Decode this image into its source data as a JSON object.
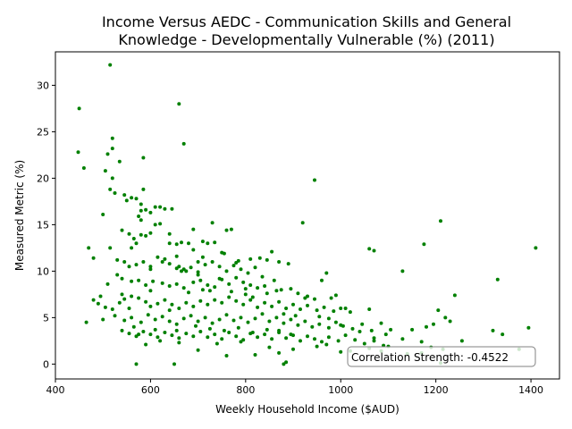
{
  "chart_data": {
    "type": "scatter",
    "title_lines": [
      "Income Versus AEDC - Communication Skills and General",
      "Knowledge - Developmentally Vulnerable (%) (2011)"
    ],
    "xlabel": "Weekly Household Income ($AUD)",
    "ylabel": "Measured Metric (%)",
    "xlim": [
      400,
      1460
    ],
    "ylim": [
      -1.6,
      33.6
    ],
    "xticks": [
      400,
      600,
      800,
      1000,
      1200,
      1400
    ],
    "yticks": [
      0,
      5,
      10,
      15,
      20,
      25,
      30
    ],
    "grid": false,
    "point_color": "#008000",
    "annotation": "Correlation Strength: -0.4522",
    "points": [
      [
        450,
        27.5
      ],
      [
        448,
        22.8
      ],
      [
        460,
        21.1
      ],
      [
        515,
        32.2
      ],
      [
        520,
        24.3
      ],
      [
        520,
        23.2
      ],
      [
        510,
        22.6
      ],
      [
        535,
        21.8
      ],
      [
        505,
        20.8
      ],
      [
        520,
        20.0
      ],
      [
        515,
        18.8
      ],
      [
        525,
        18.4
      ],
      [
        545,
        18.2
      ],
      [
        550,
        17.6
      ],
      [
        560,
        17.9
      ],
      [
        570,
        17.8
      ],
      [
        585,
        18.8
      ],
      [
        580,
        17.2
      ],
      [
        580,
        16.5
      ],
      [
        575,
        15.9
      ],
      [
        580,
        15.5
      ],
      [
        590,
        16.6
      ],
      [
        600,
        16.3
      ],
      [
        610,
        16.9
      ],
      [
        620,
        16.9
      ],
      [
        630,
        16.7
      ],
      [
        645,
        16.7
      ],
      [
        585,
        22.2
      ],
      [
        660,
        28.0
      ],
      [
        670,
        23.7
      ],
      [
        500,
        16.1
      ],
      [
        540,
        14.4
      ],
      [
        555,
        14.0
      ],
      [
        565,
        13.5
      ],
      [
        570,
        13.0
      ],
      [
        560,
        12.5
      ],
      [
        590,
        13.8
      ],
      [
        600,
        14.1
      ],
      [
        620,
        15.1
      ],
      [
        610,
        15.0
      ],
      [
        640,
        13.0
      ],
      [
        655,
        12.9
      ],
      [
        665,
        13.1
      ],
      [
        680,
        13.0
      ],
      [
        690,
        14.5
      ],
      [
        710,
        13.2
      ],
      [
        720,
        13.0
      ],
      [
        735,
        13.1
      ],
      [
        760,
        14.4
      ],
      [
        770,
        14.5
      ],
      [
        470,
        12.5
      ],
      [
        480,
        11.4
      ],
      [
        515,
        12.5
      ],
      [
        530,
        11.2
      ],
      [
        545,
        11.0
      ],
      [
        555,
        10.5
      ],
      [
        570,
        10.7
      ],
      [
        585,
        11.0
      ],
      [
        600,
        10.5
      ],
      [
        615,
        11.5
      ],
      [
        630,
        11.3
      ],
      [
        640,
        10.8
      ],
      [
        655,
        10.3
      ],
      [
        660,
        10.5
      ],
      [
        670,
        10.2
      ],
      [
        685,
        10.4
      ],
      [
        700,
        11.0
      ],
      [
        715,
        10.7
      ],
      [
        730,
        11.0
      ],
      [
        745,
        10.5
      ],
      [
        760,
        10.0
      ],
      [
        775,
        10.6
      ],
      [
        790,
        10.2
      ],
      [
        805,
        9.8
      ],
      [
        820,
        10.4
      ],
      [
        830,
        11.4
      ],
      [
        845,
        11.2
      ],
      [
        855,
        12.1
      ],
      [
        870,
        11.0
      ],
      [
        890,
        10.8
      ],
      [
        530,
        9.6
      ],
      [
        540,
        9.2
      ],
      [
        560,
        8.9
      ],
      [
        575,
        9.0
      ],
      [
        590,
        8.5
      ],
      [
        605,
        8.9
      ],
      [
        625,
        8.7
      ],
      [
        640,
        8.4
      ],
      [
        655,
        8.6
      ],
      [
        670,
        8.2
      ],
      [
        690,
        8.8
      ],
      [
        705,
        9.0
      ],
      [
        720,
        8.5
      ],
      [
        735,
        8.3
      ],
      [
        750,
        9.1
      ],
      [
        765,
        8.6
      ],
      [
        780,
        9.3
      ],
      [
        795,
        8.8
      ],
      [
        810,
        8.5
      ],
      [
        825,
        8.2
      ],
      [
        840,
        8.4
      ],
      [
        860,
        9.0
      ],
      [
        875,
        8.0
      ],
      [
        895,
        8.1
      ],
      [
        910,
        7.6
      ],
      [
        930,
        7.3
      ],
      [
        945,
        7.0
      ],
      [
        960,
        9.0
      ],
      [
        970,
        9.8
      ],
      [
        990,
        7.4
      ],
      [
        510,
        8.6
      ],
      [
        495,
        7.3
      ],
      [
        480,
        6.9
      ],
      [
        490,
        6.5
      ],
      [
        505,
        6.1
      ],
      [
        520,
        5.9
      ],
      [
        535,
        6.6
      ],
      [
        545,
        7.0
      ],
      [
        560,
        7.3
      ],
      [
        575,
        7.1
      ],
      [
        590,
        6.7
      ],
      [
        600,
        6.2
      ],
      [
        615,
        6.5
      ],
      [
        630,
        6.9
      ],
      [
        645,
        6.4
      ],
      [
        660,
        6.0
      ],
      [
        675,
        6.6
      ],
      [
        690,
        6.2
      ],
      [
        705,
        6.8
      ],
      [
        720,
        6.4
      ],
      [
        735,
        6.9
      ],
      [
        750,
        6.6
      ],
      [
        765,
        7.2
      ],
      [
        780,
        6.8
      ],
      [
        795,
        6.4
      ],
      [
        810,
        6.9
      ],
      [
        825,
        6.1
      ],
      [
        840,
        6.6
      ],
      [
        855,
        6.2
      ],
      [
        870,
        6.7
      ],
      [
        885,
        6.0
      ],
      [
        900,
        6.4
      ],
      [
        915,
        5.9
      ],
      [
        930,
        6.3
      ],
      [
        950,
        5.8
      ],
      [
        965,
        6.1
      ],
      [
        985,
        5.7
      ],
      [
        1000,
        6.0
      ],
      [
        1020,
        5.6
      ],
      [
        1060,
        5.9
      ],
      [
        465,
        4.5
      ],
      [
        500,
        4.8
      ],
      [
        525,
        5.2
      ],
      [
        545,
        4.7
      ],
      [
        560,
        5.0
      ],
      [
        580,
        4.5
      ],
      [
        595,
        5.3
      ],
      [
        610,
        4.8
      ],
      [
        625,
        5.1
      ],
      [
        640,
        4.6
      ],
      [
        655,
        4.3
      ],
      [
        670,
        4.9
      ],
      [
        685,
        5.2
      ],
      [
        700,
        4.6
      ],
      [
        715,
        5.0
      ],
      [
        730,
        4.4
      ],
      [
        745,
        4.8
      ],
      [
        760,
        5.3
      ],
      [
        775,
        4.7
      ],
      [
        790,
        5.0
      ],
      [
        805,
        4.5
      ],
      [
        820,
        4.9
      ],
      [
        835,
        5.4
      ],
      [
        850,
        4.6
      ],
      [
        865,
        5.0
      ],
      [
        880,
        4.4
      ],
      [
        895,
        4.8
      ],
      [
        910,
        4.2
      ],
      [
        925,
        4.6
      ],
      [
        940,
        4.0
      ],
      [
        955,
        4.3
      ],
      [
        975,
        3.9
      ],
      [
        990,
        4.5
      ],
      [
        1005,
        4.1
      ],
      [
        1025,
        3.8
      ],
      [
        1045,
        4.3
      ],
      [
        1065,
        3.6
      ],
      [
        1085,
        4.4
      ],
      [
        1105,
        3.7
      ],
      [
        1180,
        4.0
      ],
      [
        540,
        3.6
      ],
      [
        555,
        3.3
      ],
      [
        570,
        3.0
      ],
      [
        585,
        3.5
      ],
      [
        600,
        3.2
      ],
      [
        615,
        2.9
      ],
      [
        630,
        3.4
      ],
      [
        645,
        3.1
      ],
      [
        660,
        2.8
      ],
      [
        675,
        3.3
      ],
      [
        690,
        3.0
      ],
      [
        705,
        3.5
      ],
      [
        720,
        2.9
      ],
      [
        735,
        3.2
      ],
      [
        750,
        2.7
      ],
      [
        765,
        3.4
      ],
      [
        780,
        3.0
      ],
      [
        795,
        2.6
      ],
      [
        810,
        3.3
      ],
      [
        825,
        2.9
      ],
      [
        840,
        3.2
      ],
      [
        855,
        2.7
      ],
      [
        870,
        3.4
      ],
      [
        885,
        2.8
      ],
      [
        900,
        3.1
      ],
      [
        915,
        2.5
      ],
      [
        930,
        3.0
      ],
      [
        945,
        2.7
      ],
      [
        960,
        2.4
      ],
      [
        975,
        2.9
      ],
      [
        995,
        2.5
      ],
      [
        1010,
        3.1
      ],
      [
        1030,
        2.6
      ],
      [
        1050,
        2.2
      ],
      [
        1070,
        2.8
      ],
      [
        1090,
        2.0
      ],
      [
        1130,
        2.7
      ],
      [
        1170,
        2.4
      ],
      [
        1190,
        1.8
      ],
      [
        1255,
        2.5
      ],
      [
        590,
        2.1
      ],
      [
        620,
        2.5
      ],
      [
        660,
        2.3
      ],
      [
        700,
        1.5
      ],
      [
        740,
        2.2
      ],
      [
        760,
        0.9
      ],
      [
        790,
        2.4
      ],
      [
        820,
        1.0
      ],
      [
        850,
        1.8
      ],
      [
        870,
        1.2
      ],
      [
        880,
        0.0
      ],
      [
        885,
        0.2
      ],
      [
        900,
        1.6
      ],
      [
        950,
        1.9
      ],
      [
        970,
        2.1
      ],
      [
        1020,
        1.4
      ],
      [
        1060,
        1.7
      ],
      [
        1100,
        1.9
      ],
      [
        1170,
        1.2
      ],
      [
        1215,
        1.6
      ],
      [
        570,
        0.0
      ],
      [
        650,
        0.0
      ],
      [
        1210,
        0.1
      ],
      [
        1375,
        1.6
      ],
      [
        1320,
        3.6
      ],
      [
        1340,
        3.2
      ],
      [
        1395,
        3.9
      ],
      [
        1330,
        9.1
      ],
      [
        1410,
        12.5
      ],
      [
        1240,
        7.4
      ],
      [
        1210,
        15.4
      ],
      [
        1175,
        12.9
      ],
      [
        1070,
        12.2
      ],
      [
        1060,
        12.4
      ],
      [
        1130,
        10.0
      ],
      [
        945,
        19.8
      ],
      [
        920,
        15.2
      ],
      [
        980,
        7.1
      ],
      [
        1010,
        6.0
      ],
      [
        1205,
        5.8
      ],
      [
        1220,
        5.0
      ],
      [
        1230,
        4.6
      ],
      [
        1195,
        4.3
      ],
      [
        1150,
        3.7
      ],
      [
        1095,
        3.2
      ],
      [
        1040,
        3.5
      ],
      [
        1070,
        2.5
      ],
      [
        1085,
        1.4
      ],
      [
        1140,
        1.1
      ],
      [
        1000,
        1.3
      ],
      [
        540,
        7.5
      ],
      [
        555,
        6.0
      ],
      [
        565,
        4.0
      ],
      [
        600,
        7.9
      ],
      [
        640,
        5.8
      ],
      [
        680,
        7.7
      ],
      [
        700,
        9.6
      ],
      [
        725,
        7.9
      ],
      [
        745,
        9.2
      ],
      [
        770,
        7.8
      ],
      [
        800,
        7.5
      ],
      [
        815,
        7.2
      ],
      [
        845,
        7.6
      ],
      [
        865,
        7.9
      ],
      [
        880,
        5.4
      ],
      [
        905,
        5.2
      ],
      [
        925,
        7.1
      ],
      [
        955,
        5.1
      ],
      [
        975,
        4.9
      ],
      [
        1000,
        4.2
      ],
      [
        640,
        14.0
      ],
      [
        665,
        10.0
      ],
      [
        690,
        12.3
      ],
      [
        700,
        9.9
      ],
      [
        710,
        8.0
      ],
      [
        730,
        15.2
      ],
      [
        750,
        12.0
      ],
      [
        780,
        10.9
      ],
      [
        800,
        8.1
      ],
      [
        575,
        3.2
      ],
      [
        610,
        3.7
      ],
      [
        655,
        3.6
      ],
      [
        695,
        4.1
      ],
      [
        725,
        3.8
      ],
      [
        755,
        3.6
      ],
      [
        785,
        3.9
      ],
      [
        815,
        3.4
      ],
      [
        845,
        3.7
      ],
      [
        870,
        3.6
      ],
      [
        895,
        3.2
      ],
      [
        580,
        13.9
      ],
      [
        600,
        10.2
      ],
      [
        625,
        11.0
      ],
      [
        655,
        11.6
      ],
      [
        675,
        10.0
      ],
      [
        710,
        11.5
      ],
      [
        755,
        11.9
      ],
      [
        785,
        11.1
      ],
      [
        810,
        11.3
      ],
      [
        835,
        9.4
      ]
    ]
  }
}
